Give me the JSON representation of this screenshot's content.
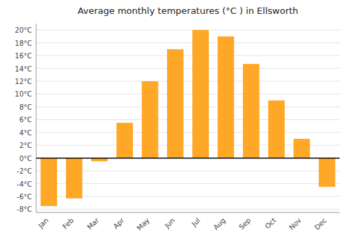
{
  "chart_data": {
    "type": "bar",
    "title": "Average monthly temperatures (°C ) in Ellsworth",
    "categories": [
      "Jan",
      "Feb",
      "Mar",
      "Apr",
      "May",
      "Jun",
      "Jul",
      "Aug",
      "Sep",
      "Oct",
      "Nov",
      "Dec"
    ],
    "values": [
      -7.5,
      -6.3,
      -0.5,
      5.5,
      12.0,
      17.0,
      20.0,
      19.0,
      14.7,
      9.0,
      3.0,
      -4.5
    ],
    "color": "#FFA726",
    "ylim": [
      -8.5,
      21
    ],
    "yticks": [
      {
        "value": -8,
        "label": "-8°C"
      },
      {
        "value": -6,
        "label": "-6°C"
      },
      {
        "value": -4,
        "label": "-4°C"
      },
      {
        "value": -2,
        "label": "-2°C"
      },
      {
        "value": 0,
        "label": "0°C"
      },
      {
        "value": 2,
        "label": "2°C"
      },
      {
        "value": 4,
        "label": "4°C"
      },
      {
        "value": 6,
        "label": "6°C"
      },
      {
        "value": 8,
        "label": "8°C"
      },
      {
        "value": 10,
        "label": "10°C"
      },
      {
        "value": 12,
        "label": "12°C"
      },
      {
        "value": 14,
        "label": "14°C"
      },
      {
        "value": 16,
        "label": "16°C"
      },
      {
        "value": 18,
        "label": "18°C"
      },
      {
        "value": 20,
        "label": "20°C"
      }
    ],
    "grid": true
  }
}
